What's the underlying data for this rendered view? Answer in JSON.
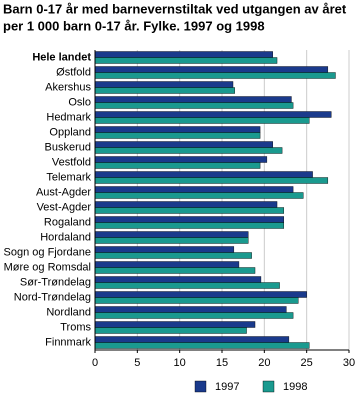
{
  "chart_data": {
    "type": "hbar",
    "title": [
      "Barn 0-17 år med barnevernstiltak ved utgangen av året",
      "per 1 000 barn 0-17 år. Fylke. 1997 og 1998"
    ],
    "categories": [
      "Hele landet",
      "Østfold",
      "Akershus",
      "Oslo",
      "Hedmark",
      "Oppland",
      "Buskerud",
      "Vestfold",
      "Telemark",
      "Aust-Agder",
      "Vest-Agder",
      "Rogaland",
      "Hordaland",
      "Sogn og Fjordane",
      "Møre og Romsdal",
      "Sør-Trøndelag",
      "Nord-Trøndelag",
      "Nordland",
      "Troms",
      "Finnmark"
    ],
    "series": [
      {
        "name": "1997",
        "color": "#1a3a8c",
        "values": [
          21.0,
          27.5,
          16.3,
          23.2,
          27.9,
          19.5,
          21.0,
          20.3,
          25.7,
          23.4,
          21.5,
          22.3,
          18.1,
          16.4,
          17.0,
          19.6,
          25.0,
          22.6,
          18.9,
          22.9
        ]
      },
      {
        "name": "1998",
        "color": "#1a9a8f",
        "values": [
          21.5,
          28.4,
          16.5,
          23.4,
          25.3,
          19.5,
          22.1,
          19.5,
          27.5,
          24.6,
          22.3,
          22.3,
          18.1,
          18.5,
          18.9,
          21.8,
          24.0,
          23.4,
          17.9,
          25.3
        ]
      }
    ],
    "xlim": [
      0,
      30
    ],
    "xticks": [
      0,
      5,
      10,
      15,
      20,
      25,
      30
    ],
    "grid": true
  }
}
